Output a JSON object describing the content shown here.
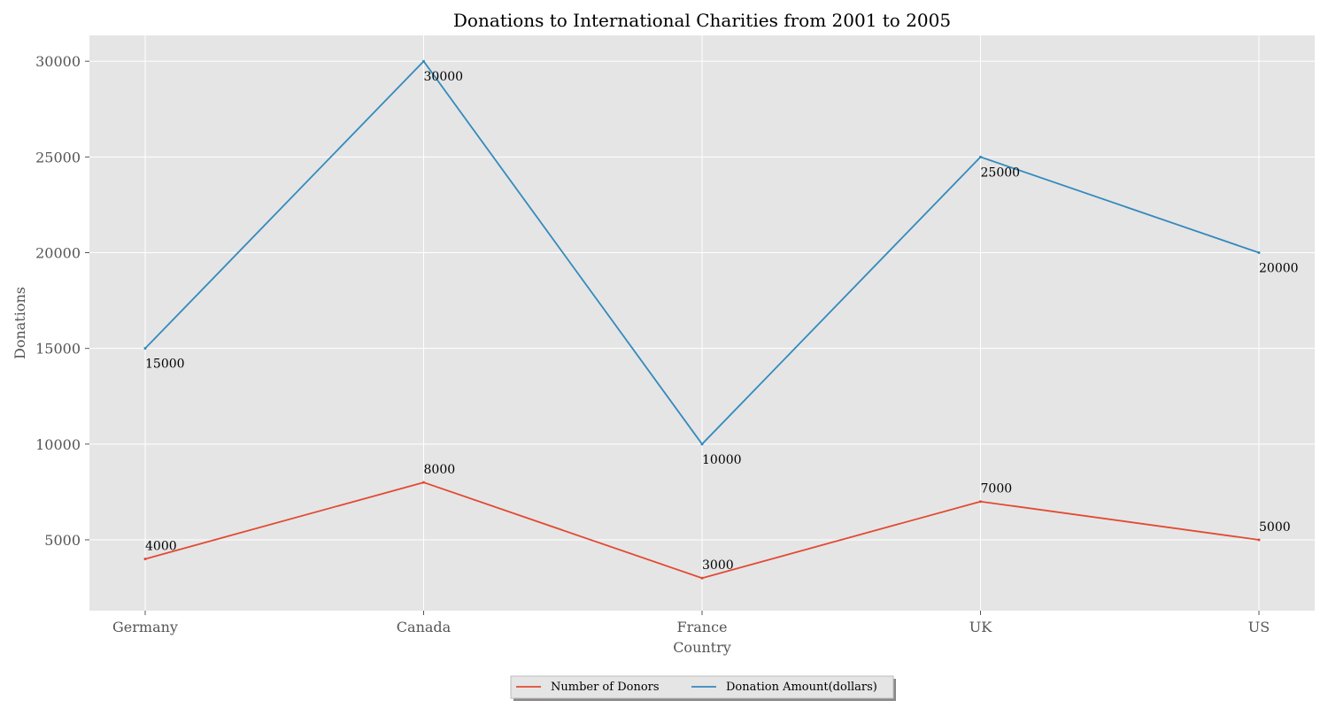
{
  "chart_data": {
    "type": "line",
    "title": "Donations to International Charities from 2001 to 2005",
    "xlabel": "Country",
    "ylabel": "Donations",
    "categories": [
      "Germany",
      "Canada",
      "France",
      "UK",
      "US"
    ],
    "series": [
      {
        "name": "Number of Donors",
        "values": [
          4000,
          8000,
          3000,
          7000,
          5000
        ],
        "color": "#e24a33",
        "label_position": "above"
      },
      {
        "name": "Donation Amount(dollars)",
        "values": [
          15000,
          30000,
          10000,
          25000,
          20000
        ],
        "color": "#348abd",
        "label_position": "below"
      }
    ],
    "ylim": [
      1300,
      31350
    ],
    "yticks": [
      5000,
      10000,
      15000,
      20000,
      25000,
      30000
    ],
    "grid": true,
    "legend_position": "bottom-center",
    "background_color": "#e5e5e5",
    "grid_color": "#ffffff"
  }
}
